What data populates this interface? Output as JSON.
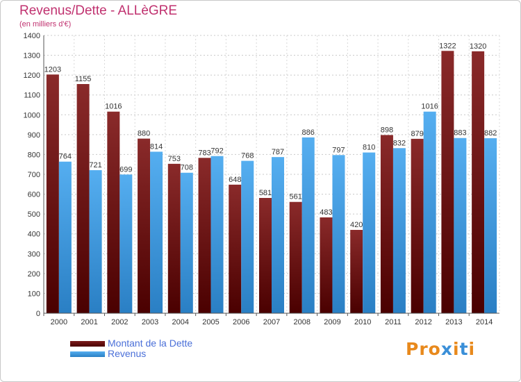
{
  "header": {
    "title": "Revenus/Dette - ALLèGRE",
    "subtitle": "(en milliers d'€)"
  },
  "legend": {
    "debt_label": "Montant de la Dette",
    "revenue_label": "Revenus"
  },
  "logo": {
    "text": "Proxiti"
  },
  "colors": {
    "debt": "#7b1c1c",
    "debt_dark": "#4a0000",
    "revenue": "#4aa3e8",
    "revenue_dark": "#2a7fc4",
    "title": "#c0316f",
    "legend_text": "#4a6fd8",
    "logo_colors": [
      "#e8891c",
      "#e8891c",
      "#e8891c",
      "#3a8fd8",
      "#e8891c",
      "#3a8fd8",
      "#e8891c"
    ]
  },
  "chart_data": {
    "type": "bar",
    "categories": [
      "2000",
      "2001",
      "2002",
      "2003",
      "2004",
      "2005",
      "2006",
      "2007",
      "2008",
      "2009",
      "2010",
      "2011",
      "2012",
      "2013",
      "2014"
    ],
    "series": [
      {
        "name": "Montant de la Dette",
        "values": [
          1203,
          1155,
          1016,
          880,
          753,
          783,
          648,
          581,
          561,
          483,
          420,
          898,
          879,
          1322,
          1320
        ]
      },
      {
        "name": "Revenus",
        "values": [
          764,
          721,
          699,
          814,
          708,
          792,
          768,
          787,
          886,
          797,
          810,
          832,
          1016,
          883,
          882
        ]
      }
    ],
    "title": "Revenus/Dette - ALLèGRE",
    "subtitle": "(en milliers d'€)",
    "xlabel": "",
    "ylabel": "",
    "ylim": [
      0,
      1400
    ],
    "yticks": [
      0,
      100,
      200,
      300,
      400,
      500,
      600,
      700,
      800,
      900,
      1000,
      1100,
      1200,
      1300,
      1400
    ],
    "grid": true,
    "legend_position": "bottom-left"
  }
}
